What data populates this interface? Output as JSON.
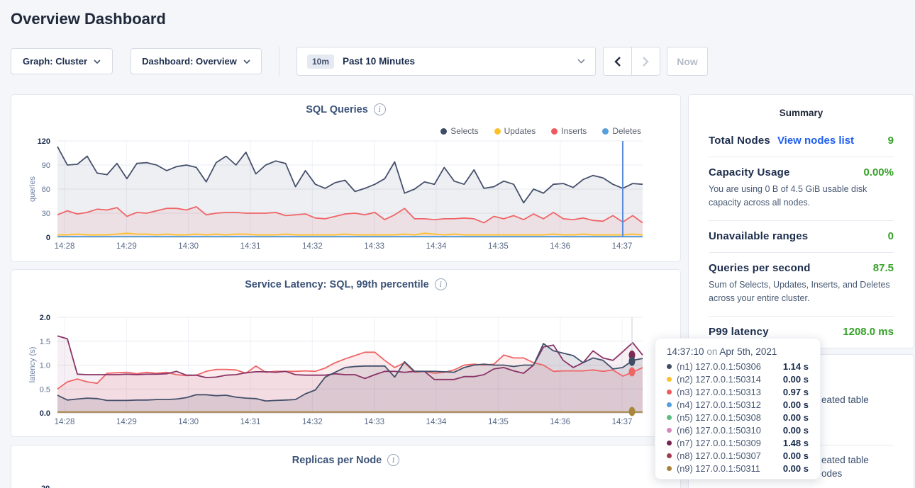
{
  "page": {
    "title": "Overview Dashboard"
  },
  "toolbar": {
    "graph_label": "Graph: Cluster",
    "dashboard_label": "Dashboard: Overview",
    "time_badge": "10m",
    "time_label": "Past 10 Minutes",
    "now_label": "Now"
  },
  "charts": {
    "sql": {
      "title": "SQL Queries",
      "ylabel": "queries",
      "ymax": 120,
      "yticks": [
        "0",
        "30",
        "60",
        "90",
        "120"
      ],
      "xticks": [
        "14:28",
        "14:29",
        "14:30",
        "14:31",
        "14:32",
        "14:33",
        "14:34",
        "14:35",
        "14:36",
        "14:37"
      ],
      "legend": [
        {
          "label": "Selects",
          "color": "#3f4c66"
        },
        {
          "label": "Updates",
          "color": "#fdc12b"
        },
        {
          "label": "Inserts",
          "color": "#f0595d"
        },
        {
          "label": "Deletes",
          "color": "#55a0dc"
        }
      ],
      "crosshair_color": "#5b8ddb",
      "series": [
        {
          "name": "Selects",
          "color": "#45506b",
          "fill": "rgba(69,80,107,0.09)",
          "values": [
            113,
            90,
            91,
            101,
            80,
            78,
            92,
            73,
            92,
            93,
            90,
            83,
            88,
            90,
            87,
            69,
            93,
            101,
            90,
            106,
            79,
            90,
            95,
            92,
            63,
            83,
            66,
            61,
            68,
            71,
            57,
            61,
            66,
            73,
            94,
            55,
            60,
            69,
            66,
            87,
            70,
            66,
            84,
            61,
            63,
            70,
            66,
            43,
            60,
            55,
            66,
            67,
            62,
            72,
            77,
            74,
            66,
            61,
            67,
            66
          ]
        },
        {
          "name": "Inserts",
          "color": "#ef6567",
          "fill": "rgba(239,101,103,0.10)",
          "values": [
            28,
            33,
            29,
            31,
            35,
            34,
            37,
            26,
            31,
            30,
            33,
            36,
            36,
            34,
            38,
            28,
            30,
            31,
            31,
            30,
            30,
            30,
            31,
            27,
            28,
            29,
            24,
            23,
            26,
            29,
            30,
            28,
            31,
            22,
            28,
            36,
            23,
            23,
            22,
            23,
            23,
            24,
            23,
            18,
            26,
            23,
            27,
            22,
            29,
            23,
            31,
            23,
            22,
            24,
            21,
            20,
            27,
            19,
            27,
            18
          ]
        },
        {
          "name": "Updates",
          "color": "#fdc028",
          "fill": "rgba(253,192,40,0.10)",
          "values": [
            3,
            3,
            4,
            3,
            3,
            3,
            4,
            5,
            4,
            4,
            3,
            4,
            3,
            3,
            4,
            3,
            4,
            3,
            4,
            4,
            3,
            3,
            3,
            4,
            3,
            3,
            3,
            3,
            3,
            4,
            3,
            3,
            3,
            3,
            3,
            4,
            3,
            5,
            4,
            3,
            4,
            3,
            3,
            3,
            3,
            3,
            3,
            3,
            3,
            3,
            4,
            3,
            3,
            4,
            3,
            3,
            3,
            3,
            4,
            3
          ]
        },
        {
          "name": "Deletes",
          "color": "#509ee0",
          "fill": "none",
          "values": [
            1,
            1
          ]
        }
      ]
    },
    "latency": {
      "title": "Service Latency: SQL, 99th percentile",
      "ylabel": "latency (s)",
      "ymax": 2,
      "yticks": [
        "0.0",
        "0.5",
        "1.0",
        "1.5",
        "2.0"
      ],
      "xticks": [
        "14:28",
        "14:29",
        "14:30",
        "14:31",
        "14:32",
        "14:33",
        "14:34",
        "14:35",
        "14:36",
        "14:37"
      ],
      "legend": [],
      "crosshair_color": "#c9cfd9",
      "series": [
        {
          "name": "n3",
          "color": "#ef6567",
          "fill": "rgba(239,101,103,0.12)",
          "values": [
            0.5,
            0.65,
            0.71,
            0.65,
            0.62,
            0.83,
            0.84,
            0.85,
            0.82,
            0.85,
            0.83,
            0.85,
            0.8,
            0.78,
            0.79,
            0.87,
            0.91,
            0.91,
            0.9,
            0.83,
            0.98,
            0.85,
            0.87,
            0.87,
            0.87,
            0.88,
            0.87,
            0.94,
            1.05,
            1.13,
            1.2,
            1.27,
            1.27,
            1.1,
            0.95,
            1.05,
            0.85,
            0.87,
            0.83,
            0.85,
            0.9,
            1.0,
            1.02,
            1.0,
            1.02,
            1.21,
            1.15,
            1.15,
            1.05,
            1.0,
            0.87,
            0.88,
            0.88,
            0.88,
            0.9,
            0.87,
            0.9,
            0.77,
            0.85,
            0.95
          ]
        },
        {
          "name": "n7",
          "color": "#8a3467",
          "fill": "rgba(138,52,103,0.08)",
          "values": [
            1.61,
            1.55,
            0.81,
            0.8,
            0.8,
            0.8,
            0.8,
            0.81,
            0.8,
            0.81,
            0.81,
            0.82,
            0.87,
            0.79,
            0.79,
            0.74,
            0.75,
            0.79,
            0.8,
            0.84,
            0.86,
            0.86,
            0.85,
            0.87,
            0.8,
            0.79,
            0.79,
            0.79,
            0.82,
            0.8,
            0.8,
            0.72,
            0.8,
            0.87,
            0.87,
            0.85,
            0.87,
            0.87,
            0.7,
            0.7,
            0.7,
            0.76,
            0.76,
            0.8,
            0.92,
            0.95,
            0.88,
            0.83,
            1.0,
            1.38,
            1.42,
            1.1,
            0.95,
            1.05,
            1.3,
            1.15,
            1.1,
            1.28,
            1.47,
            1.21
          ]
        },
        {
          "name": "n1",
          "color": "#45506b",
          "fill": "rgba(69,80,107,0.14)",
          "values": [
            0.37,
            0.27,
            0.29,
            0.31,
            0.3,
            0.26,
            0.26,
            0.26,
            0.27,
            0.27,
            0.28,
            0.28,
            0.29,
            0.32,
            0.38,
            0.38,
            0.36,
            0.37,
            0.33,
            0.31,
            0.3,
            0.25,
            0.26,
            0.27,
            0.28,
            0.4,
            0.48,
            0.75,
            0.85,
            0.95,
            0.97,
            0.98,
            0.98,
            0.98,
            0.75,
            1.07,
            0.87,
            0.87,
            0.87,
            0.86,
            0.85,
            0.95,
            1.0,
            1.02,
            1.0,
            1.0,
            0.97,
            1.0,
            1.0,
            1.45,
            1.3,
            1.25,
            1.2,
            1.05,
            1.15,
            1.1,
            0.92,
            0.95,
            1.1,
            1.14
          ]
        },
        {
          "name": "other-nodes",
          "color": "#a8863e",
          "fill": "none",
          "values": [
            0.02,
            0.02
          ]
        }
      ],
      "dots": [
        {
          "color": "#7c2b55",
          "v": 1.21
        },
        {
          "color": "#3f4c66",
          "v": 1.08
        },
        {
          "color": "#ef6567",
          "v": 0.86
        },
        {
          "color": "#a8863e",
          "v": 0.03
        }
      ]
    },
    "replicas": {
      "title": "Replicas per Node",
      "partial_tick": "20"
    }
  },
  "summary": {
    "header": "Summary",
    "value_color": "#36a128",
    "link_color": "#1d5df0",
    "rows": [
      {
        "label": "Total Nodes",
        "link": "View nodes list",
        "value": "9"
      },
      {
        "label": "Capacity Usage",
        "value": "0.00%",
        "desc": "You are using 0 B of 4.5 GiB usable disk capacity across all nodes."
      },
      {
        "label": "Unavailable ranges",
        "value": "0"
      },
      {
        "label": "Queries per second",
        "value": "87.5",
        "desc": "Sum of Selects, Updates, Inserts, and Deletes across your entire cluster."
      },
      {
        "label": "P99 latency",
        "value": "1208.0 ms"
      }
    ]
  },
  "events": {
    "fragments": [
      "eated table",
      "eated table",
      "odes"
    ]
  },
  "tooltip": {
    "time": "14:37:10",
    "conj": "on",
    "date": "Apr 5th, 2021",
    "rows": [
      {
        "color": "#3f4c66",
        "label": "(n1) 127.0.0.1:50306",
        "value": "1.14 s"
      },
      {
        "color": "#fdc12b",
        "label": "(n2) 127.0.0.1:50314",
        "value": "0.00 s"
      },
      {
        "color": "#f0595d",
        "label": "(n3) 127.0.0.1:50313",
        "value": "0.97 s"
      },
      {
        "color": "#55a0dc",
        "label": "(n4) 127.0.0.1:50312",
        "value": "0.00 s"
      },
      {
        "color": "#5dbe7f",
        "label": "(n5) 127.0.0.1:50308",
        "value": "0.00 s"
      },
      {
        "color": "#d687bd",
        "label": "(n6) 127.0.0.1:50310",
        "value": "0.00 s"
      },
      {
        "color": "#73254e",
        "label": "(n7) 127.0.0.1:50309",
        "value": "1.48 s"
      },
      {
        "color": "#a13a52",
        "label": "(n8) 127.0.0.1:50307",
        "value": "0.00 s"
      },
      {
        "color": "#a8823d",
        "label": "(n9) 127.0.0.1:50311",
        "value": "0.00 s"
      }
    ]
  }
}
